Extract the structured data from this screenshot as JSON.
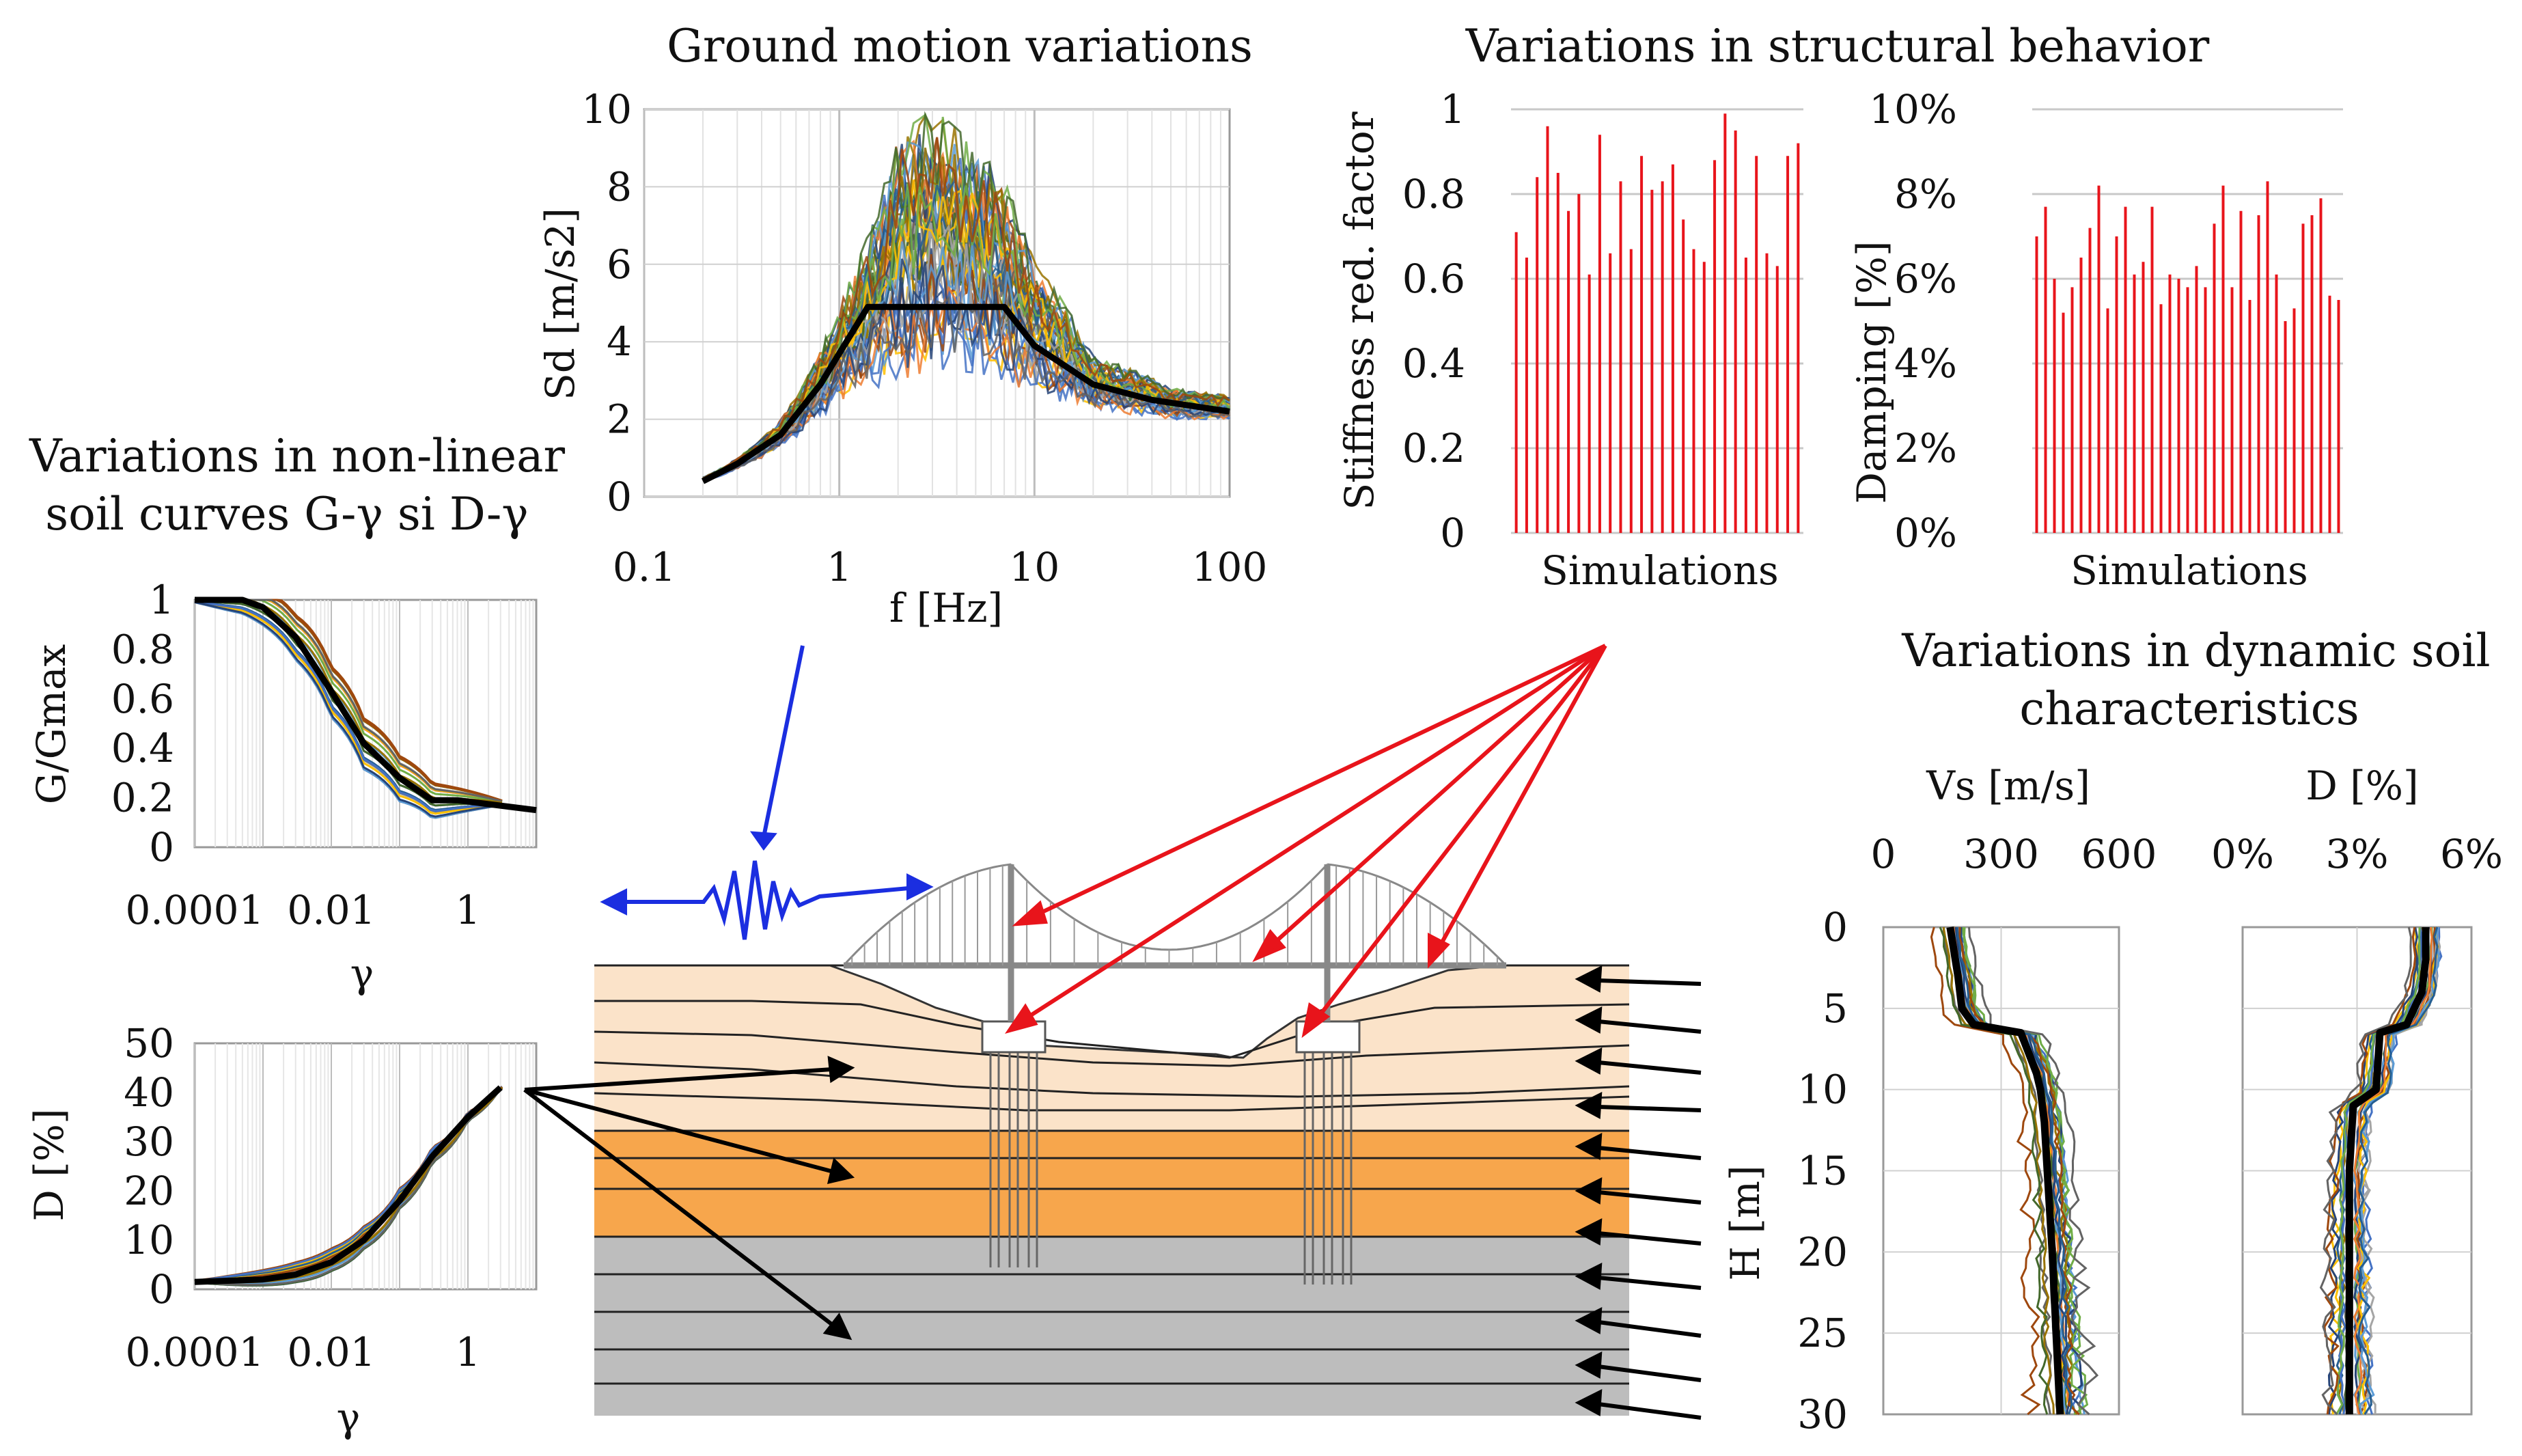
{
  "titles": {
    "ground_motion": "Ground motion variations",
    "structural": "Variations in structural behavior",
    "soil_curves_1": "Variations in non-linear",
    "soil_curves_2": "soil curves G-γ si D-γ",
    "dynamic_soil_1": "Variations in dynamic soil",
    "dynamic_soil_2": "characteristics"
  },
  "colors": {
    "red": "#e8141b",
    "blue": "#1b2ee0",
    "black": "#000000",
    "soil_light": "#fbe3c9",
    "soil_orange": "#f7a64c",
    "soil_gray": "#bdbdbd",
    "grid": "#d0d0d0",
    "series_palette": [
      "#4472c4",
      "#ed7d31",
      "#a5a5a5",
      "#ffc000",
      "#5b9bd5",
      "#70ad47",
      "#264478",
      "#9e480e",
      "#636363",
      "#997300",
      "#255e91",
      "#43682b"
    ]
  },
  "chart_data": [
    {
      "id": "ground_motion",
      "type": "line",
      "title": "Ground motion variations",
      "xlabel": "f [Hz]",
      "ylabel": "Sd [m/s2]",
      "xscale": "log",
      "xlim": [
        0.1,
        100
      ],
      "ylim": [
        0,
        10
      ],
      "xticks": [
        "0.1",
        "1",
        "10",
        "100"
      ],
      "yticks": [
        "0",
        "2",
        "4",
        "6",
        "8",
        "10"
      ],
      "mean_spectrum": {
        "name": "design",
        "x": [
          0.2,
          0.3,
          0.5,
          0.8,
          1.0,
          1.4,
          2.0,
          4.0,
          7.0,
          10,
          20,
          40,
          100
        ],
        "y": [
          0.4,
          0.85,
          1.6,
          2.9,
          3.7,
          4.9,
          4.9,
          4.9,
          4.9,
          3.9,
          2.9,
          2.5,
          2.2
        ]
      },
      "variation_band": {
        "x": [
          0.2,
          0.5,
          1,
          2,
          3,
          5,
          7,
          10,
          20,
          50,
          100
        ],
        "min": [
          0.4,
          1.3,
          2.5,
          3.0,
          3.3,
          3.2,
          3.0,
          2.6,
          2.2,
          2.0,
          2.0
        ],
        "max": [
          0.5,
          2.0,
          5.0,
          9.4,
          10,
          9.0,
          8.2,
          6.0,
          3.6,
          2.8,
          2.6
        ]
      },
      "grid": true
    },
    {
      "id": "stiffness",
      "type": "bar",
      "xlabel": "Simulations",
      "ylabel": "Stiffness red. factor",
      "ylim": [
        0,
        1
      ],
      "yticks": [
        "0",
        "0.2",
        "0.4",
        "0.6",
        "0.8",
        "1"
      ],
      "values": [
        0.71,
        0.65,
        0.84,
        0.96,
        0.85,
        0.76,
        0.8,
        0.61,
        0.94,
        0.66,
        0.83,
        0.67,
        0.89,
        0.81,
        0.83,
        0.87,
        0.74,
        0.67,
        0.64,
        0.88,
        0.99,
        0.95,
        0.65,
        0.89,
        0.66,
        0.63,
        0.89,
        0.92
      ],
      "grid": true
    },
    {
      "id": "damping",
      "type": "bar",
      "xlabel": "Simulations",
      "ylabel": "Damping [%]",
      "ylim": [
        0,
        10
      ],
      "yticks": [
        "0%",
        "2%",
        "4%",
        "6%",
        "8%",
        "10%"
      ],
      "values": [
        7.0,
        7.7,
        6.0,
        5.2,
        5.8,
        6.5,
        7.2,
        8.2,
        5.3,
        7.0,
        7.7,
        6.1,
        6.4,
        7.7,
        5.4,
        6.1,
        6.0,
        5.8,
        6.3,
        5.8,
        7.3,
        8.2,
        5.8,
        7.6,
        5.5,
        7.5,
        8.3,
        6.1,
        5.0,
        5.3,
        7.3,
        7.5,
        7.9,
        5.6,
        5.5
      ],
      "grid": true
    },
    {
      "id": "g_gmax",
      "type": "line",
      "xlabel": "γ",
      "ylabel": "G/Gmax",
      "xscale": "log",
      "xlim": [
        0.0001,
        10
      ],
      "ylim": [
        0,
        1
      ],
      "xticks": [
        "0.0001",
        "0.01",
        "1"
      ],
      "yticks": [
        "0",
        "0.2",
        "0.4",
        "0.6",
        "0.8",
        "1"
      ],
      "mean_curve": {
        "x": [
          0.0001,
          0.0005,
          0.001,
          0.003,
          0.01,
          0.03,
          0.1,
          0.3,
          0.7,
          10
        ],
        "y": [
          1.0,
          1.0,
          0.97,
          0.85,
          0.63,
          0.42,
          0.28,
          0.19,
          0.19,
          0.15
        ]
      },
      "grid": true
    },
    {
      "id": "d_curve",
      "type": "line",
      "xlabel": "γ",
      "ylabel": "D [%]",
      "xscale": "log",
      "xlim": [
        0.0001,
        10
      ],
      "ylim": [
        0,
        50
      ],
      "xticks": [
        "0.0001",
        "0.01",
        "1"
      ],
      "yticks": [
        "0",
        "10",
        "20",
        "30",
        "40",
        "50"
      ],
      "mean_curve": {
        "x": [
          0.0001,
          0.001,
          0.003,
          0.01,
          0.03,
          0.1,
          0.3,
          1,
          3
        ],
        "y": [
          1.5,
          2.0,
          3.0,
          5.5,
          10,
          18,
          27,
          35,
          41
        ]
      },
      "grid": true
    },
    {
      "id": "vs_profile",
      "type": "line",
      "xlabel": "Vs [m/s]",
      "ylabel": "H [m]",
      "xlim": [
        0,
        600
      ],
      "ylim": [
        30,
        0
      ],
      "xticks": [
        "0",
        "300",
        "600"
      ],
      "yticks": [
        "0",
        "5",
        "10",
        "15",
        "20",
        "25",
        "30"
      ],
      "mean_profile": {
        "depth": [
          0,
          3,
          5,
          6,
          6.5,
          9,
          10,
          12,
          16,
          20,
          25,
          30
        ],
        "vs": [
          170,
          190,
          200,
          230,
          350,
          390,
          400,
          410,
          420,
          430,
          440,
          450
        ]
      },
      "grid": true
    },
    {
      "id": "d_profile",
      "type": "line",
      "xlabel": "D [%]",
      "xlim": [
        0,
        6
      ],
      "ylim": [
        30,
        0
      ],
      "xticks": [
        "0%",
        "3%",
        "6%"
      ],
      "mean_profile": {
        "depth": [
          0,
          2,
          4,
          6,
          6.5,
          10,
          11,
          15,
          20,
          25,
          30
        ],
        "d": [
          4.8,
          4.8,
          4.7,
          4.3,
          3.6,
          3.5,
          2.9,
          2.8,
          2.8,
          2.8,
          2.8
        ]
      },
      "grid": true
    }
  ]
}
